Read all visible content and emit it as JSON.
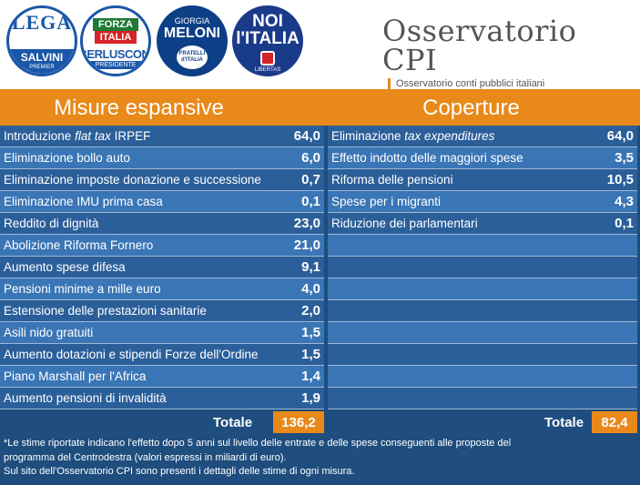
{
  "logos": {
    "lega": {
      "top": "LEGA",
      "name": "SALVINI",
      "sub": "PREMIER"
    },
    "forza_italia": {
      "line1": "FORZA",
      "line2": "ITALIA",
      "name": "BERLUSCONI",
      "sub": "PRESIDENTE"
    },
    "fdi": {
      "line1": "GIORGIA",
      "name": "MELONI",
      "sub1": "FRATELLI",
      "sub2": "d'ITALIA"
    },
    "nci": {
      "line1": "NOI",
      "line2": "l'ITALIA",
      "sub": "LIBERTAS"
    }
  },
  "brand": {
    "title": "Osservatorio CPI",
    "subtitle": "Osservatorio conti pubblici italiani"
  },
  "sections": {
    "left_title": "Misure espansive",
    "right_title": "Coperture"
  },
  "misure": [
    {
      "pre": "Introduzione ",
      "em": "flat tax",
      "post": " IRPEF",
      "value": "64,0"
    },
    {
      "pre": "Eliminazione bollo auto",
      "em": "",
      "post": "",
      "value": "6,0"
    },
    {
      "pre": "Eliminazione imposte donazione e successione",
      "em": "",
      "post": "",
      "value": "0,7"
    },
    {
      "pre": "Eliminazione IMU prima casa",
      "em": "",
      "post": "",
      "value": "0,1"
    },
    {
      "pre": "Reddito di dignità",
      "em": "",
      "post": "",
      "value": "23,0"
    },
    {
      "pre": "Abolizione Riforma Fornero",
      "em": "",
      "post": "",
      "value": "21,0"
    },
    {
      "pre": "Aumento spese difesa",
      "em": "",
      "post": "",
      "value": "9,1"
    },
    {
      "pre": "Pensioni minime a mille euro",
      "em": "",
      "post": "",
      "value": "4,0"
    },
    {
      "pre": "Estensione delle prestazioni sanitarie",
      "em": "",
      "post": "",
      "value": "2,0"
    },
    {
      "pre": "Asili nido gratuiti",
      "em": "",
      "post": "",
      "value": "1,5"
    },
    {
      "pre": "Aumento dotazioni e stipendi Forze dell'Ordine",
      "em": "",
      "post": "",
      "value": "1,5"
    },
    {
      "pre": "Piano Marshall per l'Africa",
      "em": "",
      "post": "",
      "value": "1,4"
    },
    {
      "pre": "Aumento pensioni di invalidità",
      "em": "",
      "post": "",
      "value": "1,9"
    }
  ],
  "coperture": [
    {
      "pre": "Eliminazione ",
      "em": "tax expenditures",
      "post": "",
      "value": "64,0"
    },
    {
      "pre": "Effetto indotto delle maggiori spese",
      "em": "",
      "post": "",
      "value": "3,5"
    },
    {
      "pre": "Riforma delle pensioni",
      "em": "",
      "post": "",
      "value": "10,5"
    },
    {
      "pre": "Spese per i migranti",
      "em": "",
      "post": "",
      "value": "4,3"
    },
    {
      "pre": "Riduzione dei parlamentari",
      "em": "",
      "post": "",
      "value": "0,1"
    },
    {
      "pre": "",
      "em": "",
      "post": "",
      "value": ""
    },
    {
      "pre": "",
      "em": "",
      "post": "",
      "value": ""
    },
    {
      "pre": "",
      "em": "",
      "post": "",
      "value": ""
    },
    {
      "pre": "",
      "em": "",
      "post": "",
      "value": ""
    },
    {
      "pre": "",
      "em": "",
      "post": "",
      "value": ""
    },
    {
      "pre": "",
      "em": "",
      "post": "",
      "value": ""
    },
    {
      "pre": "",
      "em": "",
      "post": "",
      "value": ""
    },
    {
      "pre": "",
      "em": "",
      "post": "",
      "value": ""
    }
  ],
  "totals": {
    "label": "Totale",
    "left_value": "136,2",
    "right_value": "82,4"
  },
  "footnote": {
    "line1": "*Le stime riportate indicano l'effetto dopo 5 anni sul livello delle entrate e delle spese conseguenti alle proposte del",
    "line2": "programma del Centrodestra (valori espressi in miliardi di euro).",
    "line3": "Sul sito dell'Osservatorio CPI sono presenti i dettagli delle stime di ogni misura."
  },
  "colors": {
    "orange": "#e8891a",
    "navy": "#1e4d7e",
    "row_light": "#3a76b6",
    "row_dark": "#2b5f9a"
  }
}
